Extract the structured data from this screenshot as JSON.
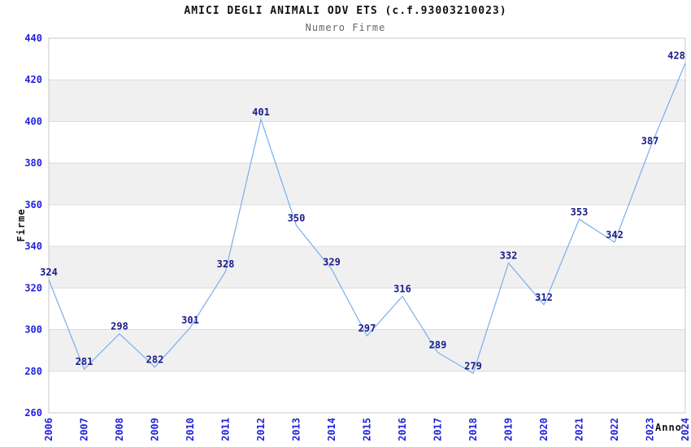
{
  "chart_data": {
    "type": "line",
    "title": "AMICI DEGLI ANIMALI ODV ETS (c.f.93003210023)",
    "subtitle": "Numero Firme",
    "xlabel": "Anno",
    "ylabel": "Firme",
    "categories": [
      "2006",
      "2007",
      "2008",
      "2009",
      "2010",
      "2011",
      "2012",
      "2013",
      "2014",
      "2015",
      "2016",
      "2017",
      "2018",
      "2019",
      "2020",
      "2021",
      "2022",
      "2023",
      "2024"
    ],
    "values": [
      324,
      281,
      298,
      282,
      301,
      328,
      401,
      350,
      329,
      297,
      316,
      289,
      279,
      332,
      312,
      353,
      342,
      387,
      428
    ],
    "ylim": [
      260,
      440
    ],
    "ytick_step": 20,
    "grid": "horizontal-bands-alternating",
    "legend": "none",
    "x_tick_rotation": -90,
    "colors": {
      "line": "#78AFEB",
      "tick_labels": "#2222DD",
      "value_labels": "#1A1A8C",
      "band": "#F0F0F0",
      "band_alt": "#FFFFFF",
      "plot_border": "#C8C8C8",
      "gridline": "#DCDCDC",
      "title": "#111111",
      "subtitle": "#666666",
      "axis_titles": "#111111"
    }
  }
}
